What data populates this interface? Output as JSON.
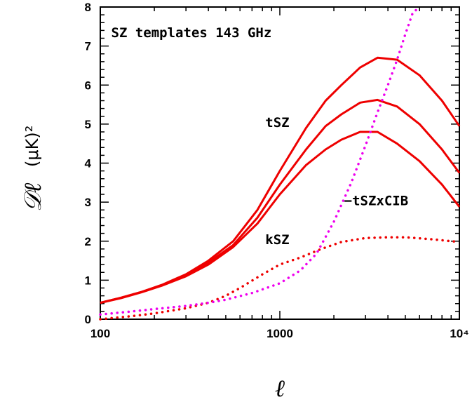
{
  "chart_data": {
    "type": "line",
    "title": "SZ templates 143 GHz",
    "xlabel": "ℓ",
    "ylabel_symbol": "𝒟ℓ",
    "ylabel_unit": "(μK)²",
    "x_scale": "log",
    "xlim": [
      100,
      10000
    ],
    "ylim": [
      0,
      8
    ],
    "x_ticks": [
      {
        "value": 100,
        "label": "100"
      },
      {
        "value": 1000,
        "label": "1000"
      },
      {
        "value": 10000,
        "label": "10⁴"
      }
    ],
    "y_ticks": [
      {
        "value": 0,
        "label": "0"
      },
      {
        "value": 1,
        "label": "1"
      },
      {
        "value": 2,
        "label": "2"
      },
      {
        "value": 3,
        "label": "3"
      },
      {
        "value": 4,
        "label": "4"
      },
      {
        "value": 5,
        "label": "5"
      },
      {
        "value": 6,
        "label": "6"
      },
      {
        "value": 7,
        "label": "7"
      },
      {
        "value": 8,
        "label": "8"
      }
    ],
    "grid": false,
    "series": [
      {
        "name": "tSZ",
        "color": "#ee0000",
        "style": "solid",
        "x": [
          100,
          130,
          170,
          220,
          300,
          400,
          550,
          750,
          1000,
          1400,
          1800,
          2200,
          2800,
          3500,
          4500,
          6000,
          8000,
          10000
        ],
        "y": [
          0.42,
          0.55,
          0.7,
          0.88,
          1.15,
          1.5,
          2.0,
          2.8,
          3.8,
          4.9,
          5.6,
          6.0,
          6.45,
          6.7,
          6.65,
          6.25,
          5.6,
          4.95
        ]
      },
      {
        "color": "#ee0000",
        "style": "solid",
        "x": [
          100,
          130,
          170,
          220,
          300,
          400,
          550,
          750,
          1000,
          1400,
          1800,
          2200,
          2800,
          3500,
          4500,
          6000,
          8000,
          10000
        ],
        "y": [
          0.42,
          0.55,
          0.7,
          0.87,
          1.12,
          1.45,
          1.9,
          2.6,
          3.45,
          4.35,
          4.95,
          5.25,
          5.55,
          5.62,
          5.45,
          5.0,
          4.35,
          3.75
        ]
      },
      {
        "color": "#ee0000",
        "style": "solid",
        "x": [
          100,
          130,
          170,
          220,
          300,
          400,
          550,
          750,
          1000,
          1400,
          1800,
          2200,
          2800,
          3500,
          4500,
          6000,
          8000,
          10000
        ],
        "y": [
          0.42,
          0.54,
          0.69,
          0.86,
          1.1,
          1.4,
          1.85,
          2.45,
          3.2,
          3.95,
          4.35,
          4.6,
          4.8,
          4.8,
          4.5,
          4.05,
          3.45,
          2.88
        ]
      },
      {
        "name": "kSZ",
        "color": "#ee0000",
        "style": "dotted",
        "x": [
          100,
          150,
          200,
          300,
          400,
          500,
          600,
          800,
          1000,
          1300,
          1700,
          2200,
          3000,
          4000,
          5000,
          7000,
          10000
        ],
        "y": [
          0.0,
          0.08,
          0.15,
          0.28,
          0.42,
          0.6,
          0.8,
          1.15,
          1.4,
          1.58,
          1.8,
          1.98,
          2.08,
          2.1,
          2.1,
          2.05,
          1.98
        ]
      },
      {
        "name": "−tSZxCIB",
        "color": "#ee00ee",
        "style": "dotted",
        "x": [
          100,
          150,
          200,
          300,
          400,
          500,
          700,
          1000,
          1300,
          1600,
          2000,
          2500,
          3000,
          3500,
          4000,
          4500,
          5000,
          5500,
          6000
        ],
        "y": [
          0.12,
          0.2,
          0.26,
          0.34,
          0.42,
          0.5,
          0.67,
          0.92,
          1.25,
          1.68,
          2.5,
          3.5,
          4.45,
          5.3,
          6.0,
          6.65,
          7.3,
          7.85,
          8.0
        ]
      }
    ],
    "annotations": [
      {
        "text": "SZ templates 143 GHz",
        "x": 115,
        "y": 7.35
      },
      {
        "text": "tSZ",
        "x": 830,
        "y": 5.05
      },
      {
        "text": "−tSZxCIB",
        "x": 2280,
        "y": 3.05
      },
      {
        "text": "kSZ",
        "x": 830,
        "y": 2.05
      }
    ]
  }
}
